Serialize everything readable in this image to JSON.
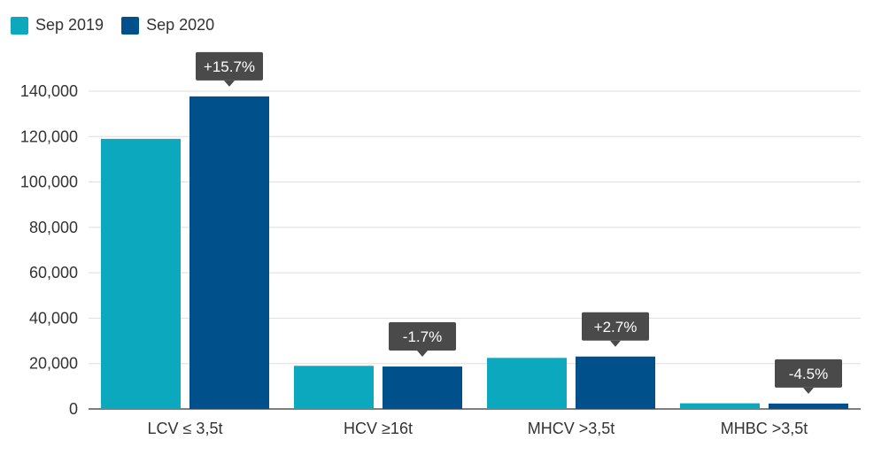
{
  "chart_data": {
    "type": "bar",
    "categories": [
      "LCV ≤ 3,5t",
      "HCV ≥16t",
      "MHCV >3,5t",
      "MHBC >3,5t"
    ],
    "series": [
      {
        "name": "Sep 2019",
        "color": "#0ba8be",
        "values": [
          119000,
          19000,
          22500,
          2500
        ]
      },
      {
        "name": "Sep 2020",
        "color": "#00508c",
        "values": [
          137700,
          18700,
          23100,
          2400
        ]
      }
    ],
    "annotations": [
      "+15.7%",
      "-1.7%",
      "+2.7%",
      "-4.5%"
    ],
    "yticks": [
      "0",
      "20,000",
      "40,000",
      "60,000",
      "80,000",
      "100,000",
      "120,000",
      "140,000"
    ],
    "ylim": [
      0,
      140000
    ],
    "grid": true,
    "legend_position": "top-left",
    "title": "",
    "xlabel": "",
    "ylabel": ""
  }
}
